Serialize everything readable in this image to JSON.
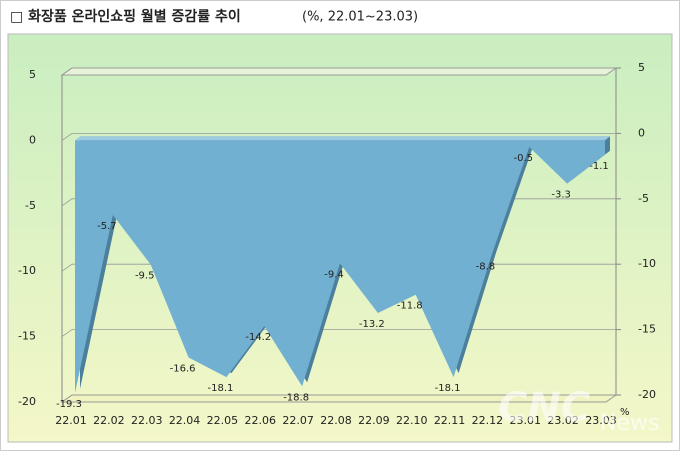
{
  "chart_data": {
    "type": "area",
    "title": "□ 화장품 온라인쇼핑 월별 증감률 추이",
    "subtitle": "(%, 22.01~23.03)",
    "categories": [
      "22.01",
      "22.02",
      "22.03",
      "22.04",
      "22.05",
      "22.06",
      "22.07",
      "22.08",
      "22.09",
      "22.10",
      "22.11",
      "22.12",
      "23.01",
      "23.02",
      "23.03"
    ],
    "values": [
      -19.3,
      -5.7,
      -9.5,
      -16.6,
      -18.1,
      -14.2,
      -18.8,
      -9.4,
      -13.2,
      -11.8,
      -18.1,
      -8.8,
      -0.5,
      -3.3,
      -1.1
    ],
    "color": "#72b0d2",
    "ylim": [
      -20,
      5
    ],
    "yticks": [
      -20,
      -15,
      -10,
      -5,
      0,
      5
    ],
    "y2lim": [
      -20,
      5
    ],
    "y2ticks": [
      -20,
      -15,
      -10,
      -5,
      0,
      5
    ],
    "unit": "%",
    "grid": true,
    "watermark": [
      "CNC",
      "News"
    ]
  }
}
